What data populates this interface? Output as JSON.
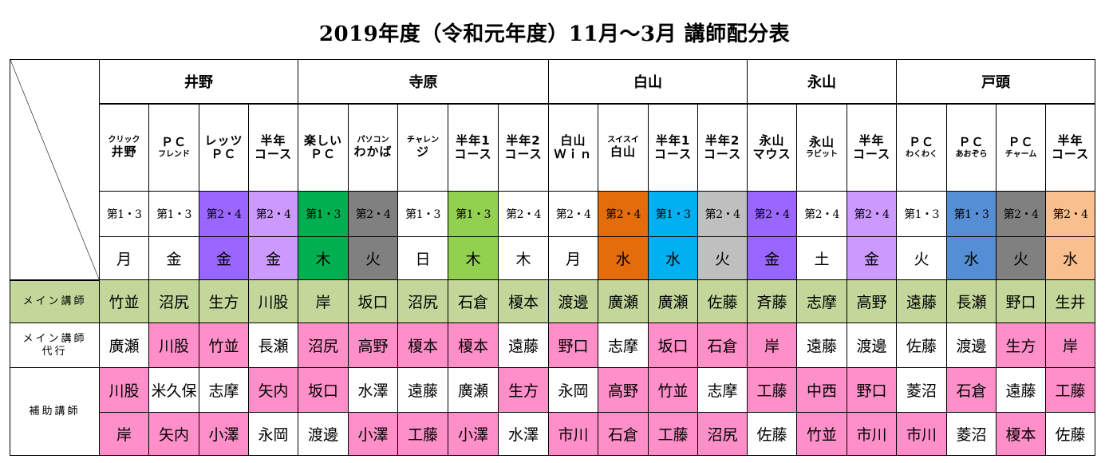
{
  "title": "2019年度（令和元年度）11月～3月  講師配分表",
  "colors": {
    "green_main": "#c4d79b",
    "pink": "#ff8fc8",
    "purple": "#9966ff",
    "lavender": "#cc99ff",
    "dark_green": "#00b050",
    "gray": "#808080",
    "light_green": "#92d050",
    "orange": "#e46c0a",
    "sky": "#00b0f0",
    "light_gray": "#bfbfbf",
    "blue": "#558ed5",
    "peach": "#fabf8f",
    "white": "#ffffff"
  },
  "instructors": [
    {
      "name": "井野",
      "span": 4
    },
    {
      "name": "寺原",
      "span": 5
    },
    {
      "name": "白山",
      "span": 4
    },
    {
      "name": "永山",
      "span": 3
    },
    {
      "name": "戸頭",
      "span": 4
    }
  ],
  "courses": [
    {
      "small": "クリック",
      "big": "井野",
      "week": "第1・3",
      "week_color": "white",
      "day": "月",
      "day_color": "white"
    },
    {
      "big": "ＰＣ",
      "small": "フレンド",
      "week": "第1・3",
      "week_color": "white",
      "day": "金",
      "day_color": "white"
    },
    {
      "big": "レッツ",
      "big2": "ＰＣ",
      "week": "第2・4",
      "week_color": "purple",
      "day": "金",
      "day_color": "purple"
    },
    {
      "big": "半年",
      "big2": "コース",
      "week": "第2・4",
      "week_color": "lavender",
      "day": "金",
      "day_color": "lavender"
    },
    {
      "big": "楽しい",
      "big2": "ＰＣ",
      "week": "第1・3",
      "week_color": "dark_green",
      "day": "木",
      "day_color": "dark_green"
    },
    {
      "small": "パソコン",
      "big": "わかば",
      "week": "第2・4",
      "week_color": "gray",
      "day": "火",
      "day_color": "gray"
    },
    {
      "small": "チャレン",
      "big": "ジ",
      "week": "第1・3",
      "week_color": "white",
      "day": "日",
      "day_color": "white"
    },
    {
      "big": "半年1",
      "big2": "コース",
      "week": "第1・3",
      "week_color": "light_green",
      "day": "木",
      "day_color": "light_green"
    },
    {
      "big": "半年2",
      "big2": "コース",
      "week": "第2・4",
      "week_color": "white",
      "day": "木",
      "day_color": "white"
    },
    {
      "big": "白山",
      "big2": "Ｗｉｎ",
      "week": "第2・4",
      "week_color": "white",
      "day": "月",
      "day_color": "white"
    },
    {
      "small": "スイスイ",
      "big": "白山",
      "week": "第2・4",
      "week_color": "orange",
      "day": "水",
      "day_color": "orange"
    },
    {
      "big": "半年1",
      "big2": "コース",
      "week": "第1・3",
      "week_color": "sky",
      "day": "水",
      "day_color": "sky"
    },
    {
      "big": "半年2",
      "big2": "コース",
      "week": "第2・4",
      "week_color": "light_gray",
      "day": "火",
      "day_color": "light_gray"
    },
    {
      "big": "永山",
      "big2": "マウス",
      "week": "第2・4",
      "week_color": "purple",
      "day": "金",
      "day_color": "purple"
    },
    {
      "big": "永山",
      "small": "ラビット",
      "week": "第2・4",
      "week_color": "white",
      "day": "土",
      "day_color": "white"
    },
    {
      "big": "半年",
      "big2": "コース",
      "week": "第2・4",
      "week_color": "lavender",
      "day": "金",
      "day_color": "lavender"
    },
    {
      "big": "ＰＣ",
      "small": "わくわく",
      "week": "第1・3",
      "week_color": "white",
      "day": "火",
      "day_color": "white"
    },
    {
      "big": "ＰＣ",
      "small": "あおぞら",
      "week": "第1・3",
      "week_color": "blue",
      "day": "水",
      "day_color": "blue"
    },
    {
      "big": "ＰＣ",
      "small": "チャーム",
      "week": "第2・4",
      "week_color": "gray",
      "day": "火",
      "day_color": "gray"
    },
    {
      "big": "半年",
      "big2": "コース",
      "week": "第2・4",
      "week_color": "peach",
      "day": "水",
      "day_color": "peach"
    }
  ],
  "row_labels": {
    "main": "メイン講師",
    "sub_line1": "メイン講師",
    "sub_line2": "代行",
    "assist": "補助講師"
  },
  "rows": {
    "main": {
      "color": "green_main",
      "names": [
        "竹並",
        "沼尻",
        "生方",
        "川股",
        "岸",
        "坂口",
        "沼尻",
        "石倉",
        "榎本",
        "渡邊",
        "廣瀬",
        "廣瀬",
        "佐藤",
        "斉藤",
        "志摩",
        "高野",
        "遠藤",
        "長瀬",
        "野口",
        "生井"
      ]
    },
    "substitute": {
      "names": [
        "廣瀬",
        "川股",
        "竹並",
        "長瀬",
        "沼尻",
        "高野",
        "榎本",
        "榎本",
        "遠藤",
        "野口",
        "志摩",
        "坂口",
        "石倉",
        "岸",
        "遠藤",
        "渡邊",
        "佐藤",
        "渡邊",
        "生方",
        "岸"
      ],
      "pink": [
        false,
        true,
        true,
        false,
        true,
        true,
        true,
        true,
        false,
        true,
        false,
        true,
        true,
        true,
        false,
        false,
        false,
        false,
        true,
        true
      ]
    },
    "assist1": {
      "names": [
        "川股",
        "米久保",
        "志摩",
        "矢内",
        "坂口",
        "水澤",
        "遠藤",
        "廣瀬",
        "生方",
        "永岡",
        "高野",
        "竹並",
        "志摩",
        "工藤",
        "中西",
        "野口",
        "菱沼",
        "石倉",
        "遠藤",
        "工藤"
      ],
      "pink": [
        true,
        false,
        false,
        true,
        true,
        false,
        false,
        false,
        true,
        false,
        true,
        true,
        false,
        true,
        true,
        true,
        false,
        true,
        false,
        true
      ]
    },
    "assist2": {
      "names": [
        "岸",
        "矢内",
        "小澤",
        "永岡",
        "渡邊",
        "小澤",
        "工藤",
        "小澤",
        "水澤",
        "市川",
        "石倉",
        "工藤",
        "沼尻",
        "佐藤",
        "竹並",
        "市川",
        "市川",
        "菱沼",
        "榎本",
        "佐藤"
      ],
      "pink": [
        true,
        true,
        true,
        false,
        false,
        true,
        true,
        true,
        false,
        true,
        true,
        true,
        true,
        false,
        true,
        true,
        true,
        false,
        true,
        false
      ]
    }
  }
}
